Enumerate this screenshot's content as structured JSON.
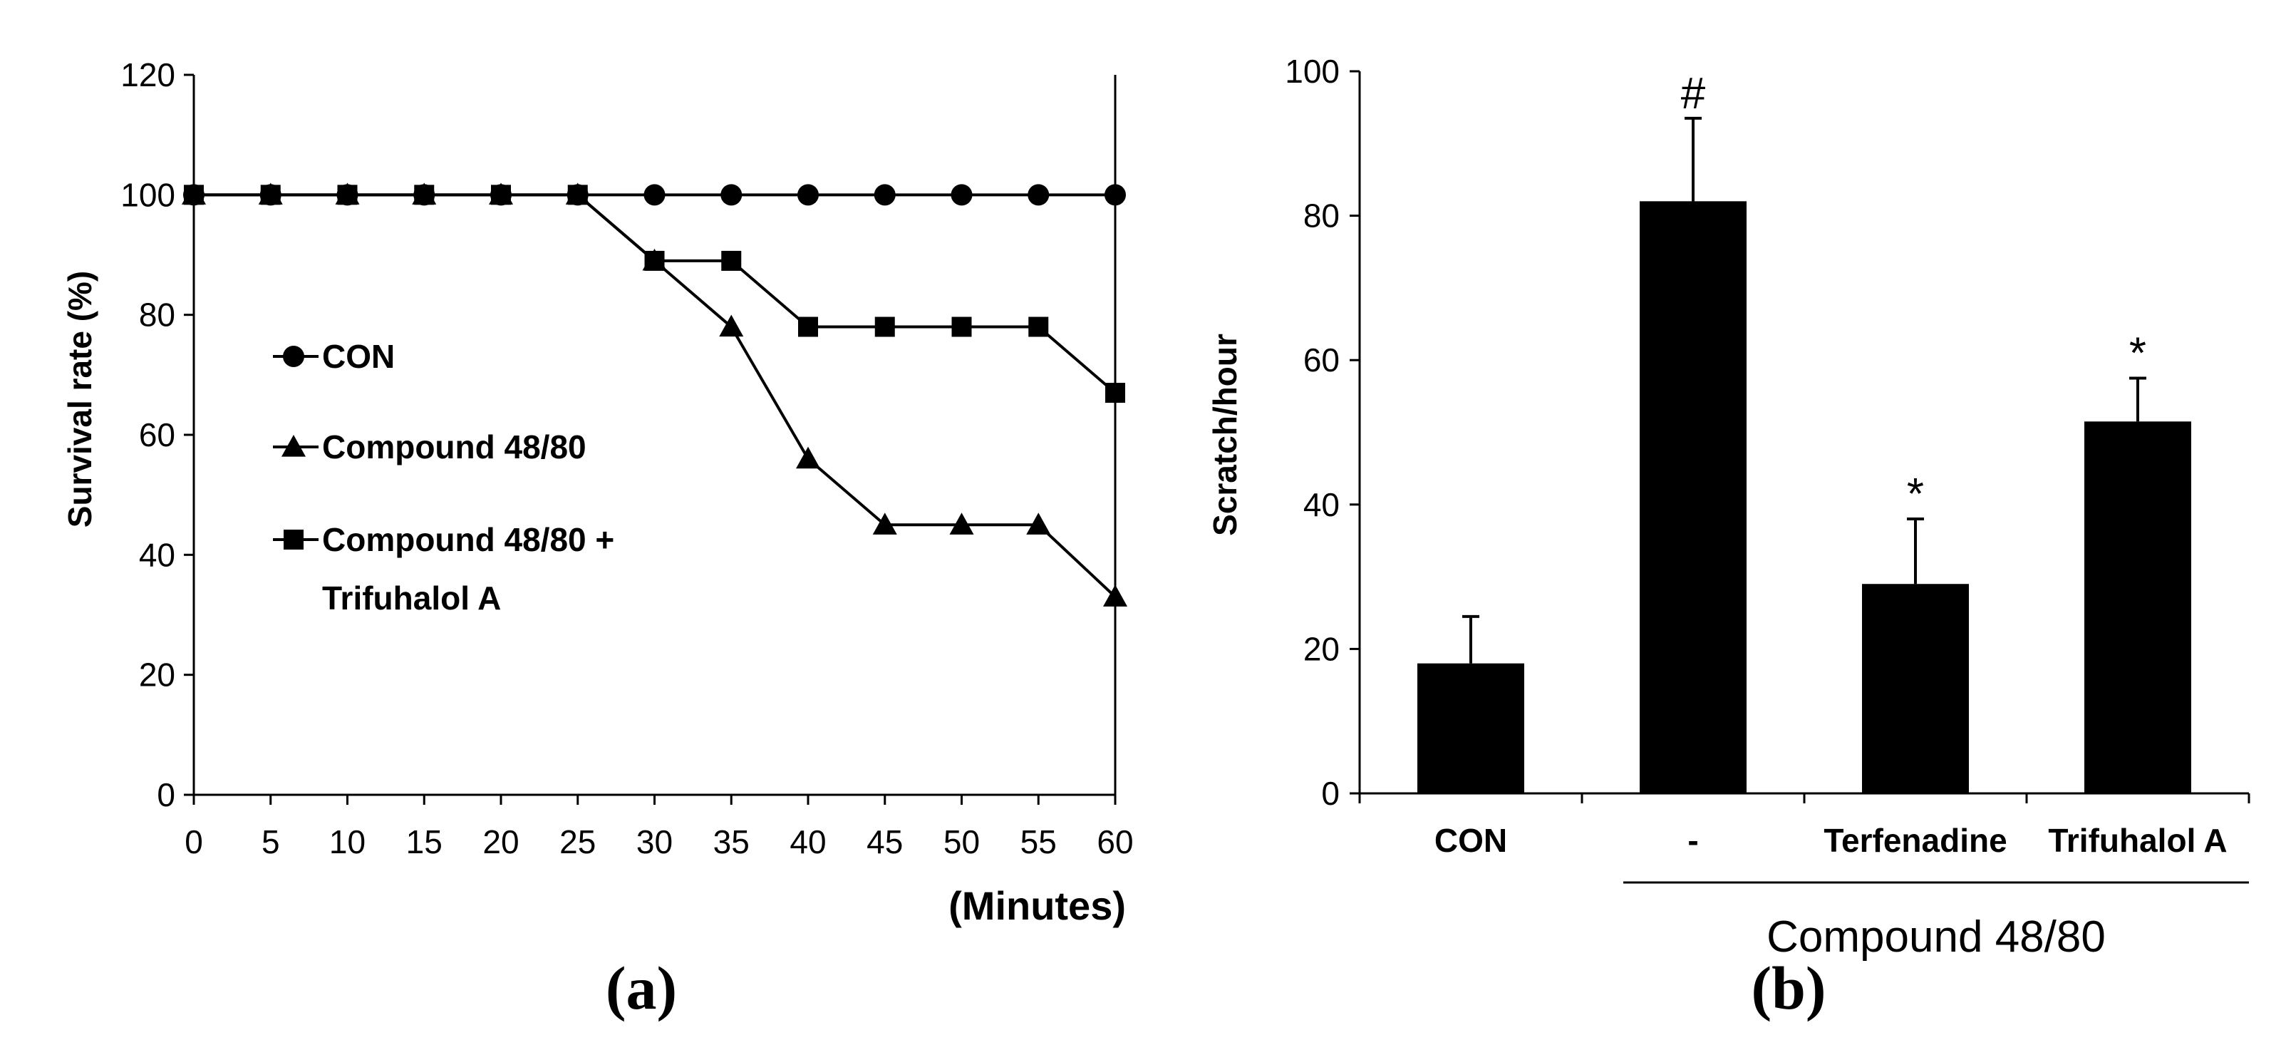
{
  "chart_data": [
    {
      "type": "line",
      "panel_label": "(a)",
      "title": "",
      "xlabel": "(Minutes)",
      "ylabel": "Survival rate (%)",
      "xlim": [
        0,
        60
      ],
      "ylim": [
        0,
        120
      ],
      "x_ticks": [
        0,
        5,
        10,
        15,
        20,
        25,
        30,
        35,
        40,
        45,
        50,
        55,
        60
      ],
      "y_ticks": [
        0,
        20,
        40,
        60,
        80,
        100,
        120
      ],
      "grid": false,
      "legend_position": "center-left",
      "x": [
        0,
        5,
        10,
        15,
        20,
        25,
        30,
        35,
        40,
        45,
        50,
        55,
        60
      ],
      "series": [
        {
          "name": "CON",
          "marker": "circle",
          "values": [
            100,
            100,
            100,
            100,
            100,
            100,
            100,
            100,
            100,
            100,
            100,
            100,
            100
          ]
        },
        {
          "name": "Compound 48/80",
          "marker": "triangle",
          "values": [
            100,
            100,
            100,
            100,
            100,
            100,
            89,
            78,
            56,
            45,
            45,
            45,
            33
          ]
        },
        {
          "name": "Compound 48/80 + Trifuhalol A",
          "legend_lines": [
            "Compound 48/80 +",
            "Trifuhalol A"
          ],
          "marker": "square",
          "values": [
            100,
            100,
            100,
            100,
            100,
            100,
            89,
            89,
            78,
            78,
            78,
            78,
            67
          ]
        }
      ]
    },
    {
      "type": "bar",
      "panel_label": "(b)",
      "title": "",
      "xlabel": "",
      "ylabel": "Scratch/hour",
      "ylim": [
        0,
        100
      ],
      "y_ticks": [
        0,
        20,
        40,
        60,
        80,
        100
      ],
      "grid": false,
      "categories": [
        "CON",
        "-",
        "Terfenadine",
        "Trifuhalol A"
      ],
      "values": [
        18,
        82,
        29,
        51.5
      ],
      "errors": [
        6.5,
        11.5,
        9,
        6
      ],
      "annotations": [
        "",
        "#",
        "*",
        "*"
      ],
      "group_label": "Compound 48/80",
      "bar_color": "#000000"
    }
  ]
}
